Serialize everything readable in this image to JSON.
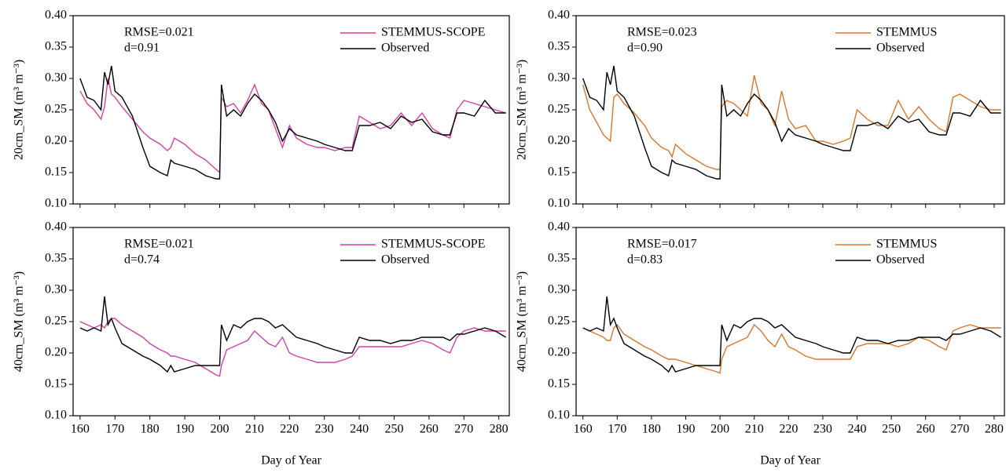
{
  "chart_data": [
    {
      "type": "line",
      "ylabel": "20cm_SM (m³ m⁻³)",
      "annotations": [
        "RMSE=0.021",
        "d=0.91"
      ],
      "x": [
        160,
        162,
        164,
        166,
        167,
        168,
        169,
        170,
        172,
        175,
        178,
        180,
        183,
        185,
        186,
        187,
        190,
        193,
        196,
        199,
        200,
        200.5,
        202,
        204,
        206,
        208,
        210,
        212,
        214,
        216,
        218,
        220,
        222,
        225,
        228,
        230,
        233,
        236,
        238,
        240,
        243,
        246,
        249,
        252,
        255,
        258,
        261,
        264,
        266,
        268,
        270,
        273,
        276,
        279,
        282
      ],
      "series": [
        {
          "name": "STEMMUS-SCOPE",
          "color": "#d63fa6",
          "values": [
            0.28,
            0.26,
            0.25,
            0.235,
            0.255,
            0.3,
            0.275,
            0.27,
            0.255,
            0.235,
            0.215,
            0.205,
            0.195,
            0.185,
            0.19,
            0.205,
            0.195,
            0.18,
            0.17,
            0.155,
            0.15,
            0.27,
            0.255,
            0.26,
            0.245,
            0.265,
            0.29,
            0.26,
            0.25,
            0.22,
            0.19,
            0.225,
            0.205,
            0.195,
            0.19,
            0.19,
            0.185,
            0.19,
            0.19,
            0.24,
            0.23,
            0.22,
            0.225,
            0.245,
            0.225,
            0.245,
            0.22,
            0.21,
            0.205,
            0.25,
            0.265,
            0.26,
            0.255,
            0.25,
            0.245
          ]
        },
        {
          "name": "Observed",
          "color": "#000000",
          "values": [
            0.3,
            0.27,
            0.265,
            0.25,
            0.31,
            0.29,
            0.32,
            0.28,
            0.27,
            0.24,
            0.19,
            0.16,
            0.15,
            0.145,
            0.17,
            0.165,
            0.16,
            0.155,
            0.145,
            0.14,
            0.14,
            0.29,
            0.24,
            0.25,
            0.24,
            0.26,
            0.275,
            0.265,
            0.25,
            0.23,
            0.2,
            0.22,
            0.21,
            0.205,
            0.2,
            0.195,
            0.19,
            0.185,
            0.185,
            0.225,
            0.225,
            0.23,
            0.22,
            0.24,
            0.23,
            0.235,
            0.215,
            0.21,
            0.21,
            0.245,
            0.245,
            0.24,
            0.265,
            0.245,
            0.245
          ]
        }
      ],
      "xlim": [
        158,
        283
      ],
      "xticks": [
        160,
        170,
        180,
        190,
        200,
        210,
        220,
        230,
        240,
        250,
        260,
        270,
        280
      ],
      "ylim": [
        0.1,
        0.4
      ],
      "yticks": [
        {
          "value": 0.1,
          "label": "0.10"
        },
        {
          "value": 0.15,
          "label": "0.15"
        },
        {
          "value": 0.2,
          "label": "0.20"
        },
        {
          "value": 0.25,
          "label": "0.25"
        },
        {
          "value": 0.3,
          "label": "0.30"
        },
        {
          "value": 0.35,
          "label": "0.35"
        },
        {
          "value": 0.4,
          "label": "0.40"
        }
      ]
    },
    {
      "type": "line",
      "ylabel": "20cm_SM (m³ m⁻³)",
      "annotations": [
        "RMSE=0.023",
        "d=0.90"
      ],
      "x": [
        160,
        162,
        164,
        166,
        167,
        168,
        169,
        170,
        172,
        175,
        178,
        180,
        183,
        185,
        186,
        187,
        190,
        193,
        196,
        199,
        200,
        200.5,
        202,
        204,
        206,
        208,
        210,
        212,
        214,
        216,
        218,
        220,
        222,
        225,
        228,
        230,
        233,
        236,
        238,
        240,
        243,
        246,
        249,
        252,
        255,
        258,
        261,
        264,
        266,
        268,
        270,
        273,
        276,
        279,
        282
      ],
      "series": [
        {
          "name": "STEMMUS",
          "color": "#d9762a",
          "values": [
            0.29,
            0.25,
            0.23,
            0.21,
            0.205,
            0.2,
            0.27,
            0.275,
            0.26,
            0.245,
            0.225,
            0.205,
            0.19,
            0.185,
            0.175,
            0.195,
            0.18,
            0.17,
            0.16,
            0.155,
            0.155,
            0.255,
            0.265,
            0.26,
            0.25,
            0.24,
            0.305,
            0.26,
            0.25,
            0.225,
            0.28,
            0.235,
            0.22,
            0.225,
            0.2,
            0.2,
            0.195,
            0.2,
            0.205,
            0.25,
            0.235,
            0.225,
            0.225,
            0.265,
            0.235,
            0.255,
            0.235,
            0.22,
            0.215,
            0.27,
            0.275,
            0.265,
            0.255,
            0.25,
            0.25
          ]
        },
        {
          "name": "Observed",
          "color": "#000000",
          "values": [
            0.3,
            0.27,
            0.265,
            0.25,
            0.31,
            0.29,
            0.32,
            0.28,
            0.27,
            0.24,
            0.19,
            0.16,
            0.15,
            0.145,
            0.17,
            0.165,
            0.16,
            0.155,
            0.145,
            0.14,
            0.14,
            0.29,
            0.24,
            0.25,
            0.24,
            0.26,
            0.275,
            0.265,
            0.25,
            0.23,
            0.2,
            0.22,
            0.21,
            0.205,
            0.2,
            0.195,
            0.19,
            0.185,
            0.185,
            0.225,
            0.225,
            0.23,
            0.22,
            0.24,
            0.23,
            0.235,
            0.215,
            0.21,
            0.21,
            0.245,
            0.245,
            0.24,
            0.265,
            0.245,
            0.245
          ]
        }
      ],
      "xlim": [
        158,
        283
      ],
      "xticks": [
        160,
        170,
        180,
        190,
        200,
        210,
        220,
        230,
        240,
        250,
        260,
        270,
        280
      ],
      "ylim": [
        0.1,
        0.4
      ],
      "yticks": [
        {
          "value": 0.1,
          "label": "0.10"
        },
        {
          "value": 0.15,
          "label": "0.15"
        },
        {
          "value": 0.2,
          "label": "0.20"
        },
        {
          "value": 0.25,
          "label": "0.25"
        },
        {
          "value": 0.3,
          "label": "0.30"
        },
        {
          "value": 0.35,
          "label": "0.35"
        },
        {
          "value": 0.4,
          "label": "0.40"
        }
      ]
    },
    {
      "type": "line",
      "ylabel": "40cm_SM (m³ m⁻³)",
      "xlabel": "Day of  Year",
      "annotations": [
        "RMSE=0.021",
        "d=0.74"
      ],
      "x": [
        160,
        162,
        164,
        166,
        167,
        168,
        169,
        170,
        172,
        175,
        178,
        180,
        183,
        185,
        186,
        187,
        190,
        193,
        196,
        199,
        200,
        200.5,
        202,
        204,
        206,
        208,
        210,
        212,
        214,
        216,
        218,
        220,
        222,
        225,
        228,
        230,
        233,
        236,
        238,
        240,
        243,
        246,
        249,
        252,
        255,
        258,
        261,
        264,
        266,
        268,
        270,
        273,
        276,
        279,
        282
      ],
      "series": [
        {
          "name": "STEMMUS-SCOPE",
          "color": "#d63fa6",
          "values": [
            0.25,
            0.245,
            0.24,
            0.245,
            0.24,
            0.25,
            0.255,
            0.255,
            0.245,
            0.235,
            0.225,
            0.215,
            0.205,
            0.2,
            0.195,
            0.195,
            0.19,
            0.185,
            0.175,
            0.165,
            0.163,
            0.18,
            0.205,
            0.21,
            0.215,
            0.22,
            0.235,
            0.225,
            0.215,
            0.21,
            0.225,
            0.2,
            0.195,
            0.19,
            0.185,
            0.185,
            0.185,
            0.19,
            0.195,
            0.21,
            0.21,
            0.21,
            0.21,
            0.21,
            0.215,
            0.22,
            0.215,
            0.205,
            0.2,
            0.225,
            0.235,
            0.24,
            0.235,
            0.235,
            0.235
          ]
        },
        {
          "name": "Observed",
          "color": "#000000",
          "values": [
            0.24,
            0.235,
            0.24,
            0.235,
            0.29,
            0.245,
            0.255,
            0.24,
            0.215,
            0.205,
            0.195,
            0.19,
            0.18,
            0.17,
            0.18,
            0.17,
            0.175,
            0.18,
            0.18,
            0.18,
            0.18,
            0.245,
            0.22,
            0.245,
            0.24,
            0.25,
            0.255,
            0.255,
            0.25,
            0.24,
            0.245,
            0.235,
            0.225,
            0.22,
            0.215,
            0.21,
            0.205,
            0.2,
            0.2,
            0.225,
            0.22,
            0.22,
            0.215,
            0.22,
            0.22,
            0.225,
            0.225,
            0.225,
            0.22,
            0.23,
            0.23,
            0.235,
            0.24,
            0.235,
            0.225
          ]
        }
      ],
      "xlim": [
        158,
        283
      ],
      "xticks": [
        160,
        170,
        180,
        190,
        200,
        210,
        220,
        230,
        240,
        250,
        260,
        270,
        280
      ],
      "ylim": [
        0.1,
        0.4
      ],
      "yticks": [
        {
          "value": 0.1,
          "label": "0.10"
        },
        {
          "value": 0.15,
          "label": "0.15"
        },
        {
          "value": 0.2,
          "label": "0.20"
        },
        {
          "value": 0.25,
          "label": "0.25"
        },
        {
          "value": 0.3,
          "label": "0.30"
        },
        {
          "value": 0.35,
          "label": "0.35"
        },
        {
          "value": 0.4,
          "label": "0.40"
        }
      ]
    },
    {
      "type": "line",
      "ylabel": "40cm_SM (m³ m⁻³)",
      "xlabel": "Day of  Year",
      "annotations": [
        "RMSE=0.017",
        "d=0.83"
      ],
      "x": [
        160,
        162,
        164,
        166,
        167,
        168,
        169,
        170,
        172,
        175,
        178,
        180,
        183,
        185,
        186,
        187,
        190,
        193,
        196,
        199,
        200,
        200.5,
        202,
        204,
        206,
        208,
        210,
        212,
        214,
        216,
        218,
        220,
        222,
        225,
        228,
        230,
        233,
        236,
        238,
        240,
        243,
        246,
        249,
        252,
        255,
        258,
        261,
        264,
        266,
        268,
        270,
        273,
        276,
        279,
        282
      ],
      "series": [
        {
          "name": "STEMMUS",
          "color": "#d9762a",
          "values": [
            0.24,
            0.235,
            0.23,
            0.225,
            0.22,
            0.22,
            0.24,
            0.245,
            0.23,
            0.22,
            0.21,
            0.205,
            0.195,
            0.19,
            0.19,
            0.19,
            0.185,
            0.18,
            0.175,
            0.17,
            0.168,
            0.19,
            0.21,
            0.215,
            0.22,
            0.225,
            0.245,
            0.235,
            0.22,
            0.21,
            0.23,
            0.21,
            0.205,
            0.195,
            0.19,
            0.19,
            0.19,
            0.19,
            0.19,
            0.21,
            0.215,
            0.215,
            0.215,
            0.21,
            0.215,
            0.225,
            0.22,
            0.21,
            0.205,
            0.235,
            0.24,
            0.245,
            0.24,
            0.24,
            0.24
          ]
        },
        {
          "name": "Observed",
          "color": "#000000",
          "values": [
            0.24,
            0.235,
            0.24,
            0.235,
            0.29,
            0.245,
            0.255,
            0.24,
            0.215,
            0.205,
            0.195,
            0.19,
            0.18,
            0.17,
            0.18,
            0.17,
            0.175,
            0.18,
            0.18,
            0.18,
            0.18,
            0.245,
            0.22,
            0.245,
            0.24,
            0.25,
            0.255,
            0.255,
            0.25,
            0.24,
            0.245,
            0.235,
            0.225,
            0.22,
            0.215,
            0.21,
            0.205,
            0.2,
            0.2,
            0.225,
            0.22,
            0.22,
            0.215,
            0.22,
            0.22,
            0.225,
            0.225,
            0.225,
            0.22,
            0.23,
            0.23,
            0.235,
            0.24,
            0.235,
            0.225
          ]
        }
      ],
      "xlim": [
        158,
        283
      ],
      "xticks": [
        160,
        170,
        180,
        190,
        200,
        210,
        220,
        230,
        240,
        250,
        260,
        270,
        280
      ],
      "ylim": [
        0.1,
        0.4
      ],
      "yticks": [
        {
          "value": 0.1,
          "label": "0.10"
        },
        {
          "value": 0.15,
          "label": "0.15"
        },
        {
          "value": 0.2,
          "label": "0.20"
        },
        {
          "value": 0.25,
          "label": "0.25"
        },
        {
          "value": 0.3,
          "label": "0.30"
        },
        {
          "value": 0.35,
          "label": "0.35"
        },
        {
          "value": 0.4,
          "label": "0.40"
        }
      ]
    }
  ]
}
